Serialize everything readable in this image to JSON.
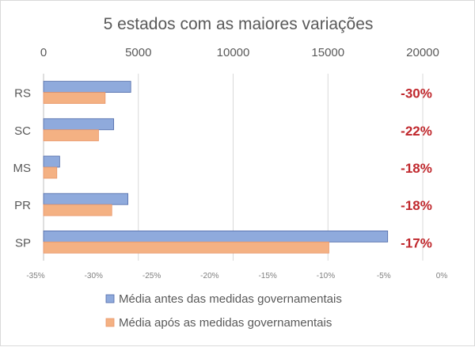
{
  "chart_data": {
    "type": "bar",
    "orientation": "horizontal",
    "title": "5 estados com as maiores variações",
    "categories": [
      "RS",
      "SC",
      "MS",
      "PR",
      "SP"
    ],
    "series": [
      {
        "name": "Média antes das medidas governamentais",
        "values": [
          4600,
          3700,
          850,
          4450,
          18150
        ],
        "color": "#8faadc"
      },
      {
        "name": "Média após as medidas governamentais",
        "values": [
          3250,
          2900,
          700,
          3600,
          15050
        ],
        "color": "#f4b183"
      }
    ],
    "variation_labels": [
      "-30%",
      "-22%",
      "-18%",
      "-18%",
      "-17%"
    ],
    "variation_color": "#c0282d",
    "xlim": [
      0,
      20000
    ],
    "x_ticks": [
      "0",
      "5000",
      "10000",
      "15000",
      "20000"
    ],
    "secondary_x_ticks": [
      "-35%",
      "-30%",
      "-25%",
      "-20%",
      "-15%",
      "-10%",
      "-5%",
      "0%"
    ],
    "grid": true,
    "legend_position": "bottom"
  }
}
